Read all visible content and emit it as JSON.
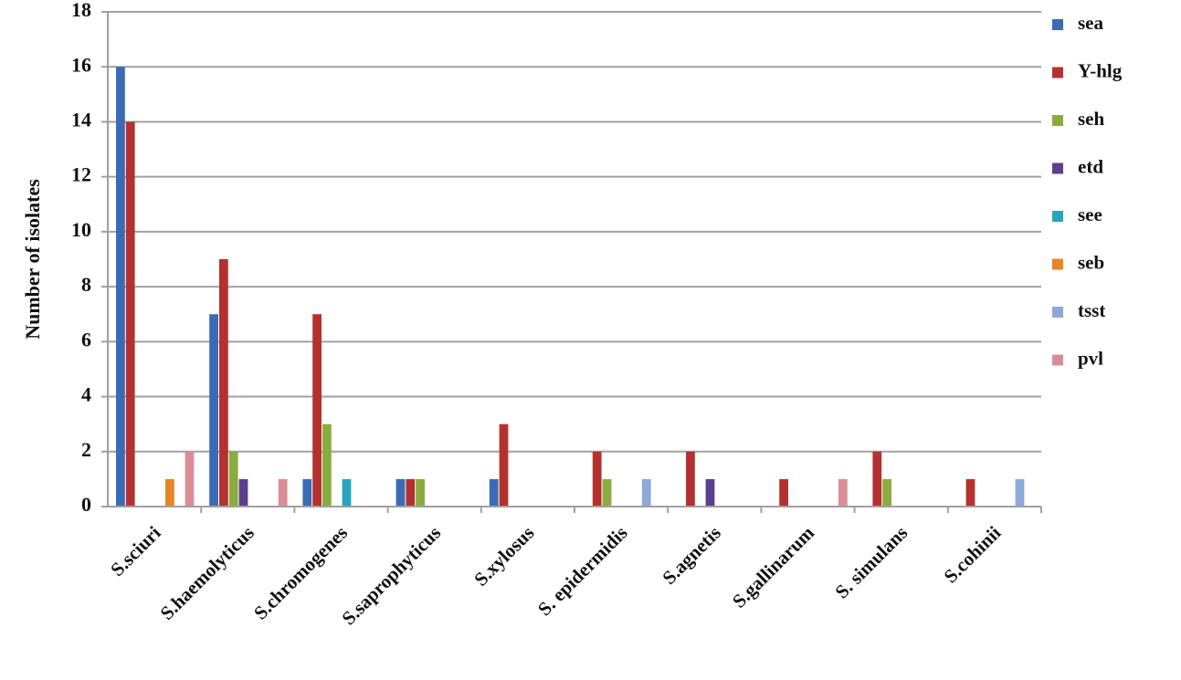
{
  "chart_data": {
    "type": "bar",
    "y_label": "Number of isolates",
    "categories": [
      "S.sciuri",
      "S.haemolyticus",
      "S.chromogenes",
      "S.saprophyticus",
      "S.xylosus",
      "S. epidermidis",
      "S.agnetis",
      "S.gallinarum",
      "S. simulans",
      "S.cohinii"
    ],
    "series": [
      {
        "name": "sea",
        "color": "#3a6cb5",
        "values": [
          16,
          7,
          1,
          1,
          1,
          0,
          0,
          0,
          0,
          0
        ]
      },
      {
        "name": "Y-hlg",
        "color": "#b3322f",
        "values": [
          14,
          9,
          7,
          1,
          3,
          2,
          2,
          1,
          2,
          1
        ]
      },
      {
        "name": "seh",
        "color": "#8aac3f",
        "values": [
          0,
          2,
          3,
          1,
          0,
          1,
          0,
          0,
          1,
          0
        ]
      },
      {
        "name": "etd",
        "color": "#5e3f8c",
        "values": [
          0,
          1,
          0,
          0,
          0,
          0,
          1,
          0,
          0,
          0
        ]
      },
      {
        "name": "see",
        "color": "#2aa3bf",
        "values": [
          0,
          0,
          1,
          0,
          0,
          0,
          0,
          0,
          0,
          0
        ]
      },
      {
        "name": "seb",
        "color": "#e88526",
        "values": [
          1,
          0,
          0,
          0,
          0,
          0,
          0,
          0,
          0,
          0
        ]
      },
      {
        "name": "tsst",
        "color": "#8ea8d8",
        "values": [
          0,
          0,
          0,
          0,
          0,
          1,
          0,
          0,
          0,
          1
        ]
      },
      {
        "name": "pvl",
        "color": "#d98e96",
        "values": [
          2,
          1,
          0,
          0,
          0,
          0,
          0,
          1,
          0,
          0
        ]
      }
    ],
    "ylim": [
      0,
      18
    ],
    "yticks": [
      0,
      2,
      4,
      6,
      8,
      10,
      12,
      14,
      16,
      18
    ],
    "grid": true,
    "legend": "right"
  }
}
